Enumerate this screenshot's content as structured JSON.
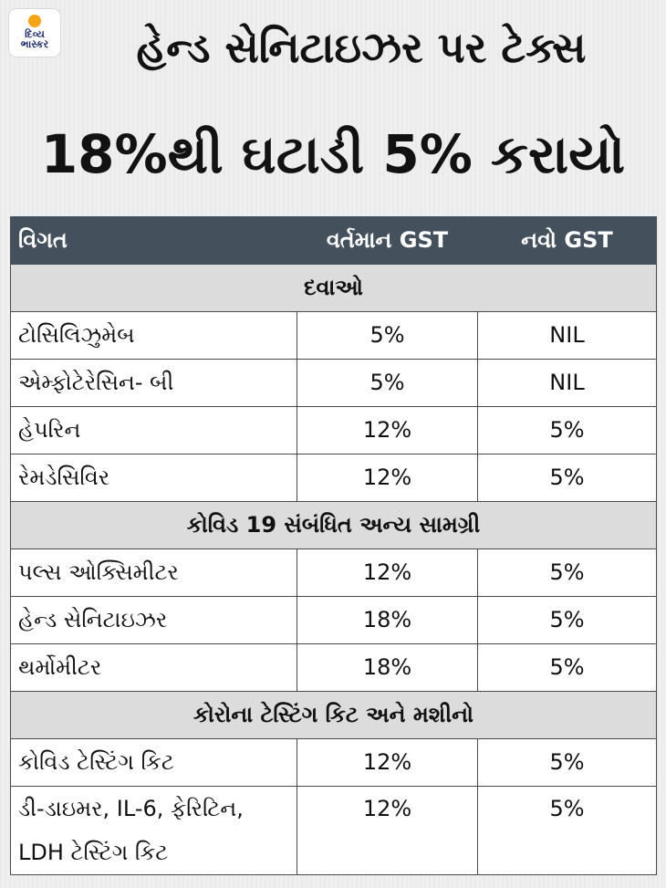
{
  "logo": {
    "line1": "દિવ્ય",
    "line2": "ભાસ્કર"
  },
  "title": {
    "line1": "હેન્ડ સેનિટાઇઝર પર ટેક્સ",
    "line2": "18%થી ઘટાડી 5% કરાયો"
  },
  "table": {
    "headers": [
      "વિગત",
      "વર્તમાન GST",
      "નવો GST"
    ],
    "sections": [
      {
        "title": "દવાઓ",
        "rows": [
          {
            "name": "ટોસિલિઝુમેબ",
            "current": "5%",
            "new": "NIL"
          },
          {
            "name": "એમ્ફોટેરેસિન- બી",
            "current": "5%",
            "new": "NIL"
          },
          {
            "name": "હેપરિન",
            "current": "12%",
            "new": "5%"
          },
          {
            "name": "રેમડેસિવિર",
            "current": "12%",
            "new": "5%"
          }
        ]
      },
      {
        "title": "કોવિડ 19 સંબંધિત અન્ય સામગ્રી",
        "rows": [
          {
            "name": "પલ્સ ઓક્સિમીટર",
            "current": "12%",
            "new": "5%"
          },
          {
            "name": "હેન્ડ સેનિટાઇઝર",
            "current": "18%",
            "new": "5%"
          },
          {
            "name": "થર્મોમીટર",
            "current": "18%",
            "new": "5%"
          }
        ]
      },
      {
        "title": "કોરોના ટેસ્ટિંગ કિટ અને મશીનો",
        "rows": [
          {
            "name": "કોવિડ ટેસ્ટિંગ કિટ",
            "current": "12%",
            "new": "5%"
          },
          {
            "name_line1": "ડી-ડાઇમર, IL-6, ફેરિટિન,",
            "name_line2": "LDH ટેસ્ટિંગ કિટ",
            "current": "12%",
            "new": "5%"
          }
        ]
      }
    ]
  }
}
